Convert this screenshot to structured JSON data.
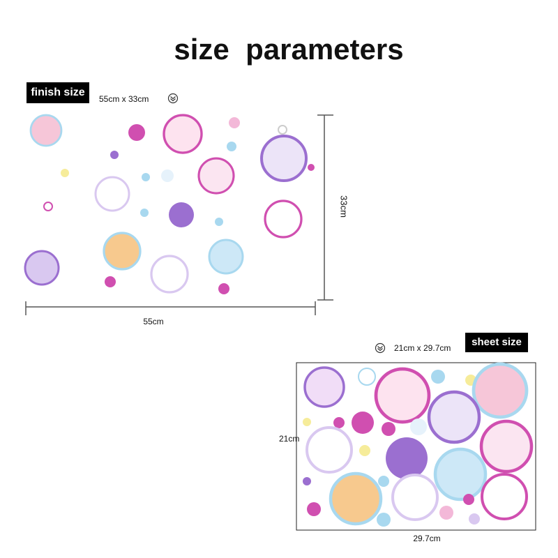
{
  "title": "size  parameters",
  "finish": {
    "label": "finish size",
    "dimensions": "55cm x 33cm",
    "height": "33cm",
    "width": "55cm"
  },
  "sheet": {
    "label": "sheet size",
    "dimensions": "21cm x 29.7cm",
    "height": "21cm",
    "width": "29.7cm"
  }
}
